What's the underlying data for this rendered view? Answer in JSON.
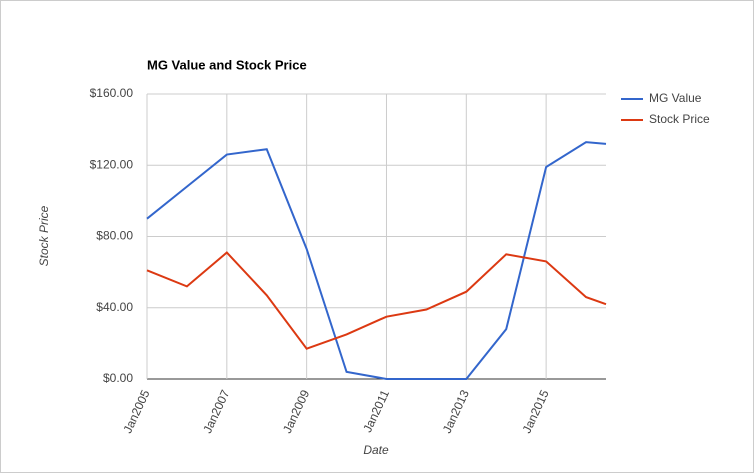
{
  "chart_data": {
    "type": "line",
    "title": "MG Value and Stock Price",
    "x_label": "Date",
    "y_label": "Stock Price",
    "x": [
      "2005-01",
      "2006-01",
      "2007-01",
      "2008-01",
      "2009-01",
      "2010-01",
      "2011-01",
      "2012-01",
      "2013-01",
      "2014-01",
      "2015-01",
      "2016-01",
      "2016-07"
    ],
    "series": [
      {
        "name": "MG Value",
        "color": "#3366cc",
        "values": [
          90,
          108,
          126,
          129,
          73,
          4,
          0,
          0,
          0,
          28,
          119,
          133,
          132
        ]
      },
      {
        "name": "Stock Price",
        "color": "#dc3912",
        "values": [
          61,
          52,
          71,
          47,
          17,
          25,
          35,
          39,
          49,
          70,
          66,
          46,
          42
        ]
      }
    ],
    "xlim": [
      "2005-01",
      "2016-07"
    ],
    "xticks": [
      {
        "value": "2005-01",
        "label": "Jan2005"
      },
      {
        "value": "2007-01",
        "label": "Jan2007"
      },
      {
        "value": "2009-01",
        "label": "Jan2009"
      },
      {
        "value": "2011-01",
        "label": "Jan2011"
      },
      {
        "value": "2013-01",
        "label": "Jan2013"
      },
      {
        "value": "2015-01",
        "label": "Jan2015"
      }
    ],
    "ylim": [
      0,
      160
    ],
    "yticks": [
      {
        "value": 0,
        "label": "$0.00"
      },
      {
        "value": 40,
        "label": "$40.00"
      },
      {
        "value": 80,
        "label": "$80.00"
      },
      {
        "value": 120,
        "label": "$120.00"
      },
      {
        "value": 160,
        "label": "$160.00"
      }
    ],
    "grid": true,
    "legend": "right"
  }
}
